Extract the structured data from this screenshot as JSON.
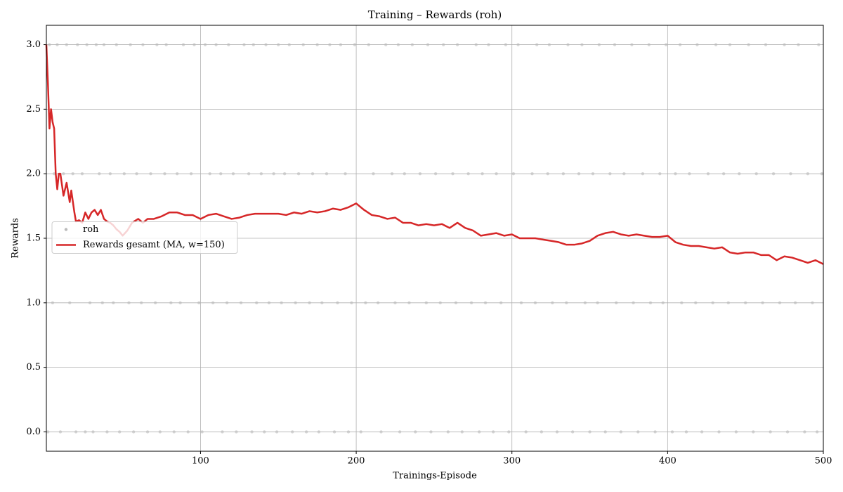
{
  "chart_data": {
    "type": "line",
    "title": "Training – Rewards (roh)",
    "xlabel": "Trainings-Episode",
    "ylabel": "Rewards",
    "xlim": [
      1,
      500
    ],
    "xticks": [
      100,
      200,
      300,
      400,
      500
    ],
    "ylim": [
      -0.15,
      3.15
    ],
    "yticks": [
      {
        "value": 0,
        "label": "0.0"
      },
      {
        "value": 0.5,
        "label": "0.5"
      },
      {
        "value": 1,
        "label": "1.0"
      },
      {
        "value": 1.5,
        "label": "1.5"
      },
      {
        "value": 2,
        "label": "2.0"
      },
      {
        "value": 2.5,
        "label": "2.5"
      },
      {
        "value": 3,
        "label": "3.0"
      }
    ],
    "grid": true,
    "legend": "center left",
    "series": [
      {
        "name": "roh",
        "type": "scatter",
        "color": "#bbbbbb",
        "x": [
          3,
          8,
          14,
          21,
          27,
          33,
          38,
          46,
          55,
          63,
          72,
          78,
          89,
          96,
          103,
          110,
          118,
          128,
          134,
          142,
          150,
          157,
          166,
          175,
          183,
          190,
          199,
          208,
          219,
          227,
          236,
          246,
          256,
          265,
          277,
          285,
          296,
          304,
          316,
          324,
          336,
          345,
          356,
          366,
          377,
          388,
          399,
          408,
          419,
          431,
          440,
          452,
          463,
          475,
          484,
          497,
          6,
          12,
          18,
          24,
          35,
          42,
          51,
          59,
          68,
          77,
          85,
          94,
          106,
          113,
          121,
          131,
          139,
          147,
          154,
          163,
          172,
          181,
          193,
          211,
          223,
          231,
          241,
          251,
          262,
          272,
          281,
          290,
          301,
          313,
          323,
          333,
          343,
          352,
          363,
          372,
          384,
          395,
          405,
          414,
          426,
          436,
          446,
          457,
          468,
          479,
          490,
          499,
          5,
          16,
          29,
          37,
          44,
          54,
          62,
          71,
          81,
          87,
          99,
          108,
          117,
          126,
          136,
          144,
          152,
          161,
          170,
          178,
          188,
          197,
          206,
          214,
          225,
          234,
          245,
          254,
          264,
          274,
          283,
          293,
          306,
          315,
          326,
          335,
          347,
          355,
          367,
          378,
          389,
          397,
          409,
          418,
          429,
          439,
          450,
          461,
          472,
          482,
          493,
          2,
          10,
          20,
          26,
          31,
          40,
          48,
          57,
          66,
          74,
          83,
          92,
          101,
          114,
          123,
          133,
          141,
          149,
          159,
          168,
          176,
          186,
          195,
          203,
          216,
          228,
          238,
          248,
          259,
          268,
          279,
          288,
          298,
          309,
          319,
          329,
          339,
          350,
          360,
          370,
          381,
          392,
          403,
          412,
          422,
          433,
          444,
          455,
          466,
          477,
          488,
          496
        ],
        "values": [
          3,
          3,
          3,
          3,
          3,
          3,
          3,
          3,
          3,
          3,
          3,
          3,
          3,
          3,
          3,
          3,
          3,
          3,
          3,
          3,
          3,
          3,
          3,
          3,
          3,
          3,
          3,
          3,
          3,
          3,
          3,
          3,
          3,
          3,
          3,
          3,
          3,
          3,
          3,
          3,
          3,
          3,
          3,
          3,
          3,
          3,
          3,
          3,
          3,
          3,
          3,
          3,
          3,
          3,
          3,
          3,
          2,
          2,
          2,
          2,
          2,
          2,
          2,
          2,
          2,
          2,
          2,
          2,
          2,
          2,
          2,
          2,
          2,
          2,
          2,
          2,
          2,
          2,
          2,
          2,
          2,
          2,
          2,
          2,
          2,
          2,
          2,
          2,
          2,
          2,
          2,
          2,
          2,
          2,
          2,
          2,
          2,
          2,
          2,
          2,
          2,
          2,
          2,
          2,
          2,
          2,
          2,
          2,
          1,
          1,
          1,
          1,
          1,
          1,
          1,
          1,
          1,
          1,
          1,
          1,
          1,
          1,
          1,
          1,
          1,
          1,
          1,
          1,
          1,
          1,
          1,
          1,
          1,
          1,
          1,
          1,
          1,
          1,
          1,
          1,
          1,
          1,
          1,
          1,
          1,
          1,
          1,
          1,
          1,
          1,
          1,
          1,
          1,
          1,
          1,
          1,
          1,
          1,
          1,
          0,
          0,
          0,
          0,
          0,
          0,
          0,
          0,
          0,
          0,
          0,
          0,
          0,
          0,
          0,
          0,
          0,
          0,
          0,
          0,
          0,
          0,
          0,
          0,
          0,
          0,
          0,
          0,
          0,
          0,
          0,
          0,
          0,
          0,
          0,
          0,
          0,
          0,
          0,
          0,
          0,
          0,
          0,
          0,
          0,
          0,
          0,
          0,
          0,
          0,
          0,
          0
        ]
      },
      {
        "name": "Rewards gesamt (MA, w=150)",
        "type": "line",
        "color": "#d62728",
        "x": [
          1,
          2,
          3,
          4,
          5,
          6,
          7,
          8,
          9,
          10,
          12,
          14,
          16,
          17,
          19,
          20,
          22,
          24,
          26,
          28,
          30,
          32,
          34,
          36,
          38,
          40,
          42,
          44,
          46,
          48,
          50,
          53,
          56,
          60,
          63,
          66,
          70,
          75,
          80,
          85,
          90,
          95,
          100,
          105,
          110,
          115,
          120,
          125,
          130,
          135,
          140,
          145,
          150,
          155,
          160,
          165,
          170,
          175,
          180,
          185,
          190,
          195,
          200,
          205,
          210,
          215,
          220,
          225,
          230,
          235,
          240,
          245,
          250,
          255,
          260,
          265,
          270,
          275,
          280,
          285,
          290,
          295,
          300,
          305,
          310,
          315,
          320,
          325,
          330,
          335,
          340,
          345,
          350,
          355,
          360,
          365,
          370,
          375,
          380,
          385,
          390,
          395,
          400,
          405,
          410,
          415,
          420,
          425,
          430,
          435,
          440,
          445,
          450,
          455,
          460,
          465,
          470,
          475,
          480,
          485,
          490,
          495,
          500
        ],
        "values": [
          3.0,
          2.7,
          2.35,
          2.5,
          2.4,
          2.35,
          2.0,
          1.88,
          2.0,
          2.0,
          1.83,
          1.93,
          1.78,
          1.87,
          1.7,
          1.63,
          1.64,
          1.62,
          1.7,
          1.65,
          1.7,
          1.72,
          1.68,
          1.72,
          1.65,
          1.63,
          1.62,
          1.6,
          1.57,
          1.55,
          1.52,
          1.56,
          1.62,
          1.65,
          1.62,
          1.65,
          1.65,
          1.67,
          1.7,
          1.7,
          1.68,
          1.68,
          1.65,
          1.68,
          1.69,
          1.67,
          1.65,
          1.66,
          1.68,
          1.69,
          1.69,
          1.69,
          1.69,
          1.68,
          1.7,
          1.69,
          1.71,
          1.7,
          1.71,
          1.73,
          1.72,
          1.74,
          1.77,
          1.72,
          1.68,
          1.67,
          1.65,
          1.66,
          1.62,
          1.62,
          1.6,
          1.61,
          1.6,
          1.61,
          1.58,
          1.62,
          1.58,
          1.56,
          1.52,
          1.53,
          1.54,
          1.52,
          1.53,
          1.5,
          1.5,
          1.5,
          1.49,
          1.48,
          1.47,
          1.45,
          1.45,
          1.46,
          1.48,
          1.52,
          1.54,
          1.55,
          1.53,
          1.52,
          1.53,
          1.52,
          1.51,
          1.51,
          1.52,
          1.47,
          1.45,
          1.44,
          1.44,
          1.43,
          1.42,
          1.43,
          1.39,
          1.38,
          1.39,
          1.39,
          1.37,
          1.37,
          1.33,
          1.36,
          1.35,
          1.33,
          1.31,
          1.33,
          1.3
        ]
      }
    ]
  }
}
